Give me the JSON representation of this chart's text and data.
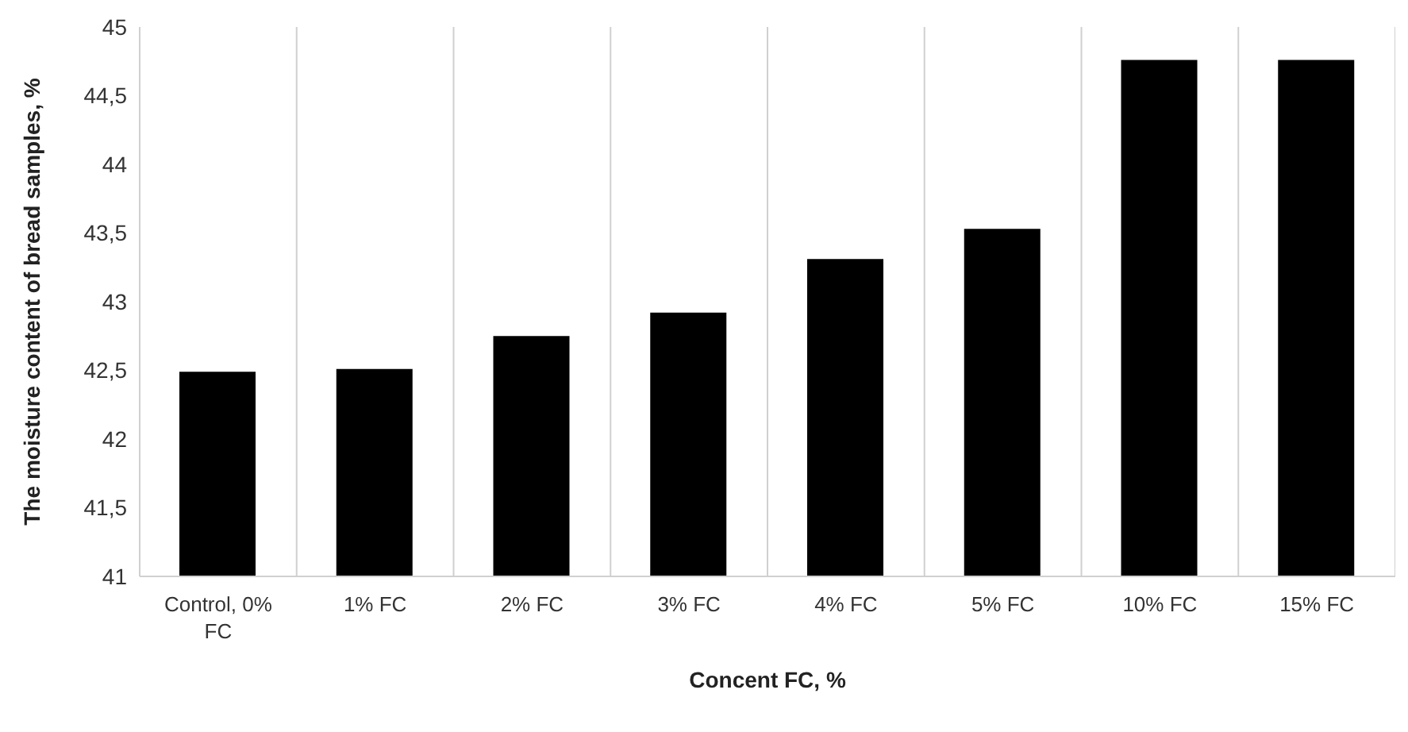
{
  "chart_data": {
    "type": "bar",
    "xlabel": "Concent FC, %",
    "ylabel": "The moisture content of bread samples, %",
    "categories": [
      "Control, 0% FC",
      "1% FC",
      "2% FC",
      "3% FC",
      "4% FC",
      "5% FC",
      "10% FC",
      "15% FC"
    ],
    "values": [
      42.49,
      42.51,
      42.75,
      42.92,
      43.31,
      43.53,
      44.76,
      44.76
    ],
    "color": "#000000",
    "ylim": [
      41,
      45
    ],
    "yticks": [
      {
        "value": 41,
        "label": "41"
      },
      {
        "value": 41.5,
        "label": "41,5"
      },
      {
        "value": 42,
        "label": "42"
      },
      {
        "value": 42.5,
        "label": "42,5"
      },
      {
        "value": 43,
        "label": "43"
      },
      {
        "value": 43.5,
        "label": "43,5"
      },
      {
        "value": 44,
        "label": "44"
      },
      {
        "value": 44.5,
        "label": "44,5"
      },
      {
        "value": 45,
        "label": "45"
      }
    ],
    "grid": "x"
  }
}
